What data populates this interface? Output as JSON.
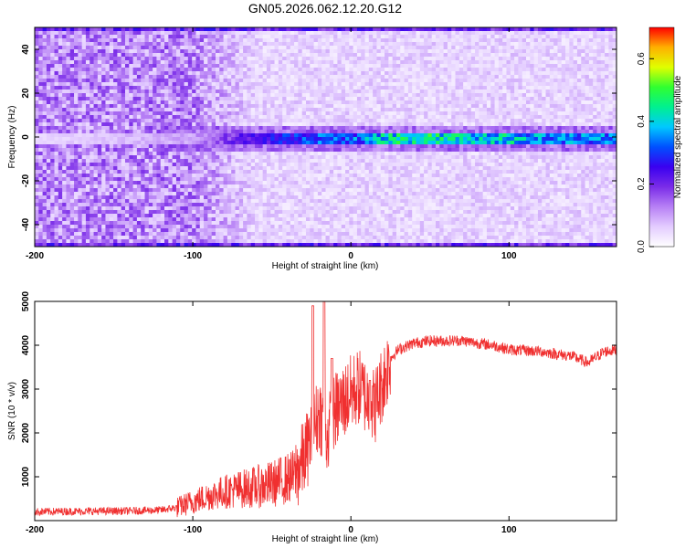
{
  "title": "GN05.2026.062.12.20.G12",
  "chart_data": [
    {
      "type": "heatmap",
      "xlabel": "Height of straight line (km)",
      "ylabel": "Frequency (Hz)",
      "xlim": [
        -200,
        168
      ],
      "ylim": [
        -50,
        50
      ],
      "x_ticks": [
        -200,
        -100,
        0,
        100
      ],
      "y_ticks": [
        -40,
        -20,
        0,
        20,
        40
      ],
      "colorbar": {
        "label": "Normalized spectral amplitude",
        "range": [
          0.0,
          0.7
        ],
        "ticks": [
          0.0,
          0.2,
          0.4,
          0.6
        ],
        "tick_labels": [
          "0.0",
          "0.2",
          "0.4",
          "0.6"
        ],
        "colormap": [
          "#ffffff",
          "#e3ccff",
          "#b780f5",
          "#7a2ce8",
          "#3a00f0",
          "#0050ff",
          "#00c8ff",
          "#00f090",
          "#30ff30",
          "#e0ff00",
          "#ffb000",
          "#ff0000"
        ]
      },
      "ridge": [
        {
          "x": -200,
          "amp": 0.05
        },
        {
          "x": -100,
          "amp": 0.1
        },
        {
          "x": -80,
          "amp": 0.18
        },
        {
          "x": -40,
          "amp": 0.28
        },
        {
          "x": -20,
          "amp": 0.32
        },
        {
          "x": 0,
          "amp": 0.32
        },
        {
          "x": 20,
          "amp": 0.4
        },
        {
          "x": 40,
          "amp": 0.45
        },
        {
          "x": 60,
          "amp": 0.42
        },
        {
          "x": 80,
          "amp": 0.4
        },
        {
          "x": 100,
          "amp": 0.4
        },
        {
          "x": 120,
          "amp": 0.36
        },
        {
          "x": 140,
          "amp": 0.34
        },
        {
          "x": 168,
          "amp": 0.34
        }
      ]
    },
    {
      "type": "line",
      "xlabel": "Height of straight line (km)",
      "ylabel": "SNR (10 * v/v)",
      "xlim": [
        -200,
        168
      ],
      "ylim": [
        0,
        5000
      ],
      "x_ticks": [
        -200,
        -100,
        0,
        100
      ],
      "y_ticks": [
        1000,
        2000,
        3000,
        4000,
        5000
      ],
      "color": "#f03030",
      "series": [
        {
          "points": [
            [
              -200,
              200
            ],
            [
              -180,
              210
            ],
            [
              -160,
              215
            ],
            [
              -140,
              220
            ],
            [
              -120,
              240
            ],
            [
              -110,
              300
            ],
            [
              -100,
              430
            ],
            [
              -90,
              560
            ],
            [
              -80,
              660
            ],
            [
              -70,
              720
            ],
            [
              -60,
              770
            ],
            [
              -50,
              830
            ],
            [
              -40,
              960
            ],
            [
              -35,
              1050
            ],
            [
              -30,
              1400
            ],
            [
              -25,
              1900
            ],
            [
              -20,
              2500
            ],
            [
              -15,
              1900
            ],
            [
              -10,
              2500
            ],
            [
              -5,
              2700
            ],
            [
              0,
              2900
            ],
            [
              5,
              3050
            ],
            [
              10,
              2800
            ],
            [
              15,
              2600
            ],
            [
              20,
              3150
            ],
            [
              25,
              3700
            ],
            [
              30,
              3900
            ],
            [
              40,
              4050
            ],
            [
              50,
              4100
            ],
            [
              60,
              4100
            ],
            [
              70,
              4110
            ],
            [
              80,
              4050
            ],
            [
              90,
              4000
            ],
            [
              100,
              3900
            ],
            [
              110,
              3880
            ],
            [
              120,
              3860
            ],
            [
              130,
              3800
            ],
            [
              140,
              3750
            ],
            [
              150,
              3600
            ],
            [
              160,
              3850
            ],
            [
              168,
              3900
            ]
          ],
          "spikes": [
            {
              "x": -24,
              "y": 4900
            },
            {
              "x": -17,
              "y": 5000
            },
            {
              "x": -12,
              "y": 3700
            },
            {
              "x": 12,
              "y": 3200
            }
          ]
        }
      ]
    }
  ]
}
